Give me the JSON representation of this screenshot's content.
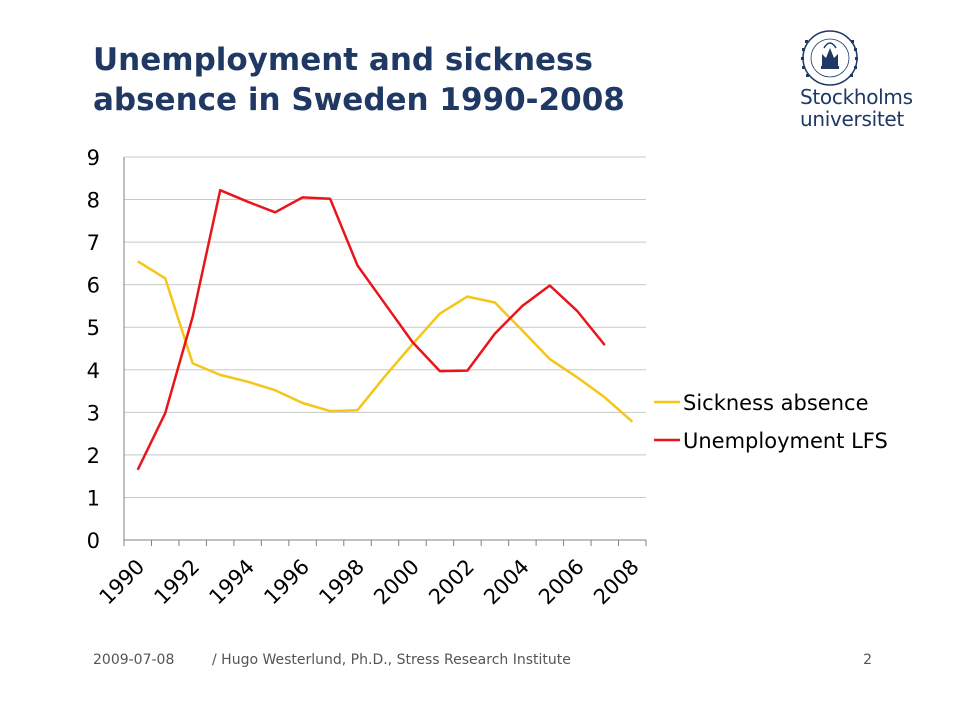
{
  "slide": {
    "title_line1": "Unemployment and sickness",
    "title_line2": "absence in Sweden 1990-2008"
  },
  "logo": {
    "line1": "Stockholms",
    "line2": "universitet",
    "seal_text": "UNIVERSITET STOCKHOLMS"
  },
  "footer": {
    "date": "2009-07-08",
    "credit": "/ Hugo Westerlund, Ph.D., Stress Research Institute",
    "page": "2"
  },
  "colors": {
    "title": "#1f3864",
    "sickness": "#f5c518",
    "unemployment": "#e8161b",
    "grid": "#c8c8c8",
    "axis": "#808080"
  },
  "chart_data": {
    "type": "line",
    "title": "",
    "xlabel": "",
    "ylabel": "",
    "ylim": [
      0,
      9
    ],
    "yticks": [
      0,
      1,
      2,
      3,
      4,
      5,
      6,
      7,
      8,
      9
    ],
    "xticks": [
      1990,
      1992,
      1994,
      1996,
      1998,
      2000,
      2002,
      2004,
      2006,
      2008
    ],
    "x": [
      1990,
      1991,
      1992,
      1993,
      1994,
      1995,
      1996,
      1997,
      1998,
      1999,
      2000,
      2001,
      2002,
      2003,
      2004,
      2005,
      2006,
      2007,
      2008
    ],
    "grid": true,
    "legend_position": "right",
    "series": [
      {
        "name": "Sickness absence",
        "color": "#f5c518",
        "values": [
          6.55,
          6.15,
          4.15,
          3.88,
          3.72,
          3.52,
          3.22,
          3.03,
          3.05,
          3.85,
          4.6,
          5.32,
          5.72,
          5.58,
          4.92,
          4.25,
          3.82,
          3.35,
          2.78
        ]
      },
      {
        "name": "Unemployment LFS",
        "color": "#e8161b",
        "values": [
          1.65,
          2.98,
          5.25,
          8.22,
          7.95,
          7.7,
          8.05,
          8.02,
          6.45,
          5.55,
          4.65,
          3.97,
          3.98,
          4.85,
          5.5,
          5.98,
          5.38,
          4.58,
          null
        ]
      }
    ]
  }
}
